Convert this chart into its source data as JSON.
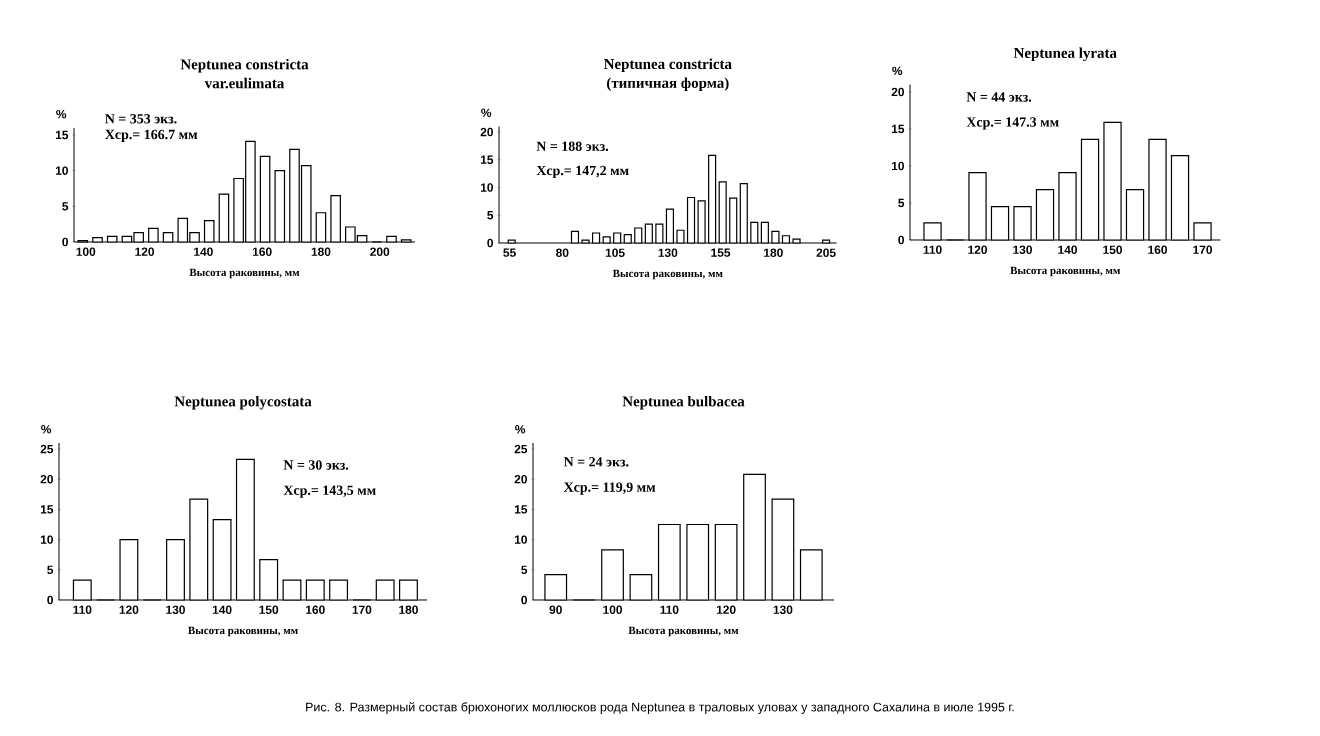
{
  "chart_data": [
    {
      "type": "bar",
      "title": "Neptunea constricta",
      "subtitle": "var.eulimata",
      "xlabel": "Высота раковины, мм",
      "ylabel": "%",
      "annotations": [
        "N = 353 экз.",
        "Xср.= 166.7 мм"
      ],
      "color": "#ffffff",
      "x": [
        99,
        104,
        109,
        114,
        118,
        123,
        128,
        133,
        137,
        142,
        147,
        152,
        156,
        161,
        166,
        171,
        175,
        180,
        185,
        190,
        194,
        199,
        204,
        209
      ],
      "values": [
        0.2,
        0.6,
        0.8,
        0.8,
        1.3,
        1.9,
        1.3,
        3.3,
        1.3,
        3.0,
        6.7,
        8.9,
        14.1,
        12.0,
        10.0,
        13.0,
        10.7,
        4.1,
        6.5,
        2.1,
        0.9,
        0,
        0.8,
        0.3
      ],
      "xlim": [
        96,
        212
      ],
      "ylim": [
        0,
        16
      ],
      "xticks": [
        100,
        120,
        140,
        160,
        180,
        200
      ],
      "yticks": [
        0,
        5,
        10,
        15
      ]
    },
    {
      "type": "bar",
      "title": "Neptunea constricta",
      "subtitle": "(типичная форма)",
      "xlabel": "Высота раковины, мм",
      "ylabel": "%",
      "annotations": [
        "N = 188 экз.",
        "Xср.= 147,2 мм"
      ],
      "color": "#ffffff",
      "x": [
        56,
        86,
        91,
        96,
        101,
        106,
        111,
        116,
        121,
        126,
        131,
        136,
        141,
        146,
        151,
        156,
        161,
        166,
        171,
        176,
        181,
        186,
        191,
        205
      ],
      "values": [
        0.5,
        2.1,
        0.5,
        1.8,
        1.1,
        1.8,
        1.5,
        2.7,
        3.4,
        3.4,
        6.1,
        2.3,
        8.2,
        7.6,
        15.8,
        11.0,
        8.1,
        10.7,
        3.7,
        3.7,
        2.1,
        1.3,
        0.7,
        0.5
      ],
      "xlim": [
        50,
        210
      ],
      "ylim": [
        0,
        21
      ],
      "xticks": [
        55,
        80,
        105,
        130,
        155,
        180,
        205
      ],
      "yticks": [
        0,
        5,
        10,
        15,
        20
      ]
    },
    {
      "type": "bar",
      "title": "Neptunea lyrata",
      "xlabel": "Высота раковины, мм",
      "ylabel": "%",
      "annotations": [
        "N = 44 экз.",
        "Xср.= 147.3 мм"
      ],
      "color": "#ffffff",
      "x": [
        110,
        115,
        120,
        125,
        130,
        135,
        140,
        145,
        150,
        155,
        160,
        165,
        170
      ],
      "values": [
        2.3,
        0,
        9.1,
        4.5,
        4.5,
        6.8,
        9.1,
        13.6,
        15.9,
        6.8,
        13.6,
        11.4,
        2.3
      ],
      "xlim": [
        105,
        174
      ],
      "ylim": [
        0,
        21
      ],
      "xticks": [
        110,
        120,
        130,
        140,
        150,
        160,
        170
      ],
      "yticks": [
        0,
        5,
        10,
        15,
        20
      ]
    },
    {
      "type": "bar",
      "title": "Neptunea polycostata",
      "xlabel": "Высота раковины, мм",
      "ylabel": "%",
      "annotations": [
        "N = 30 экз.",
        "Xср.= 143,5 мм"
      ],
      "color": "#ffffff",
      "x": [
        110,
        115,
        120,
        125,
        130,
        135,
        140,
        145,
        150,
        155,
        160,
        165,
        170,
        175,
        180
      ],
      "values": [
        3.3,
        0,
        10.0,
        0,
        10.0,
        16.7,
        13.3,
        23.3,
        6.7,
        3.3,
        3.3,
        3.3,
        0,
        3.3,
        3.3
      ],
      "xlim": [
        105,
        184
      ],
      "ylim": [
        0,
        26
      ],
      "xticks": [
        110,
        120,
        130,
        140,
        150,
        160,
        170,
        180
      ],
      "yticks": [
        0,
        5,
        10,
        15,
        20,
        25
      ]
    },
    {
      "type": "bar",
      "title": "Neptunea bulbacea",
      "xlabel": "Высота раковины, мм",
      "ylabel": "%",
      "annotations": [
        "N = 24 экз.",
        "Xср.= 119,9 мм",
        "Рис. 8. Размерный состав брюхоногих моллюсков рода Neptunea в траловых уловах у западного Сахалина в июле 1995 г."
      ],
      "color": "#ffffff",
      "x": [
        90,
        95,
        100,
        105,
        110,
        115,
        120,
        125,
        130,
        135
      ],
      "values": [
        4.2,
        0,
        8.3,
        4.2,
        12.5,
        12.5,
        12.5,
        20.8,
        16.7,
        8.3
      ],
      "xlim": [
        86,
        139
      ],
      "ylim": [
        0,
        26
      ],
      "xticks": [
        90,
        100,
        110,
        120,
        130
      ],
      "yticks": [
        0,
        5,
        10,
        15,
        20,
        25
      ]
    }
  ]
}
